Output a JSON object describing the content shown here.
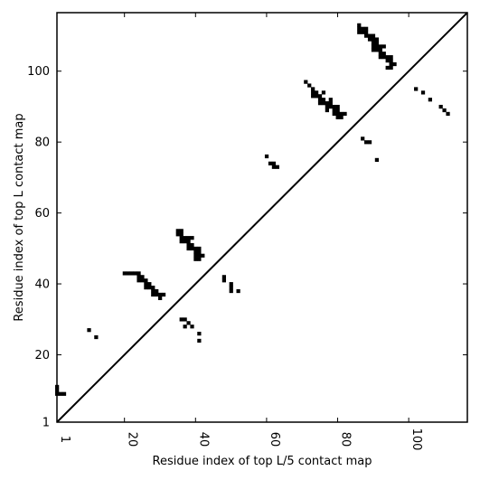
{
  "chart_data": {
    "type": "scatter",
    "xlabel": "Residue index of top L/5 contact map",
    "ylabel": "Residue index of top L contact map",
    "xlim": [
      1,
      116.5
    ],
    "ylim": [
      1,
      116.5
    ],
    "x_ticks": [
      {
        "value": 1,
        "label": "1"
      },
      {
        "value": 20,
        "label": "20"
      },
      {
        "value": 40,
        "label": "40"
      },
      {
        "value": 60,
        "label": "60"
      },
      {
        "value": 80,
        "label": "80"
      },
      {
        "value": 100,
        "label": "100"
      }
    ],
    "y_ticks": [
      {
        "value": 1,
        "label": "1"
      },
      {
        "value": 20,
        "label": "20"
      },
      {
        "value": 40,
        "label": "40"
      },
      {
        "value": 60,
        "label": "60"
      },
      {
        "value": 80,
        "label": "80"
      },
      {
        "value": 100,
        "label": "100"
      }
    ],
    "diagonal": true,
    "grid": false,
    "marker_color": "#000000",
    "points": [
      [
        1,
        9
      ],
      [
        1,
        10
      ],
      [
        1,
        11
      ],
      [
        2,
        9
      ],
      [
        3,
        9
      ],
      [
        10,
        27
      ],
      [
        12,
        25
      ],
      [
        20,
        43
      ],
      [
        21,
        43
      ],
      [
        22,
        43
      ],
      [
        23,
        43
      ],
      [
        24,
        43
      ],
      [
        24,
        42
      ],
      [
        25,
        42
      ],
      [
        24,
        41
      ],
      [
        25,
        41
      ],
      [
        26,
        41
      ],
      [
        26,
        40
      ],
      [
        27,
        40
      ],
      [
        26,
        39
      ],
      [
        27,
        39
      ],
      [
        28,
        39
      ],
      [
        28,
        38
      ],
      [
        29,
        38
      ],
      [
        28,
        37
      ],
      [
        29,
        37
      ],
      [
        30,
        37
      ],
      [
        31,
        37
      ],
      [
        30,
        36
      ],
      [
        35,
        55
      ],
      [
        36,
        55
      ],
      [
        35,
        54
      ],
      [
        36,
        54
      ],
      [
        36,
        53
      ],
      [
        37,
        53
      ],
      [
        38,
        53
      ],
      [
        39,
        53
      ],
      [
        36,
        52
      ],
      [
        37,
        52
      ],
      [
        38,
        52
      ],
      [
        38,
        51
      ],
      [
        39,
        51
      ],
      [
        38,
        50
      ],
      [
        39,
        50
      ],
      [
        40,
        50
      ],
      [
        41,
        50
      ],
      [
        40,
        49
      ],
      [
        41,
        49
      ],
      [
        40,
        48
      ],
      [
        41,
        48
      ],
      [
        42,
        48
      ],
      [
        40,
        47
      ],
      [
        41,
        47
      ],
      [
        36,
        30
      ],
      [
        37,
        30
      ],
      [
        38,
        29
      ],
      [
        37,
        28
      ],
      [
        39,
        28
      ],
      [
        41,
        26
      ],
      [
        41,
        24
      ],
      [
        48,
        42
      ],
      [
        48,
        41
      ],
      [
        50,
        40
      ],
      [
        50,
        39
      ],
      [
        50,
        38
      ],
      [
        52,
        38
      ],
      [
        60,
        76
      ],
      [
        61,
        74
      ],
      [
        62,
        74
      ],
      [
        62,
        73
      ],
      [
        63,
        73
      ],
      [
        71,
        97
      ],
      [
        72,
        96
      ],
      [
        73,
        95
      ],
      [
        73,
        94
      ],
      [
        74,
        94
      ],
      [
        76,
        94
      ],
      [
        73,
        93
      ],
      [
        74,
        93
      ],
      [
        75,
        93
      ],
      [
        75,
        92
      ],
      [
        76,
        92
      ],
      [
        78,
        92
      ],
      [
        75,
        91
      ],
      [
        76,
        91
      ],
      [
        77,
        91
      ],
      [
        78,
        91
      ],
      [
        77,
        90
      ],
      [
        78,
        90
      ],
      [
        79,
        90
      ],
      [
        80,
        90
      ],
      [
        77,
        89
      ],
      [
        79,
        89
      ],
      [
        80,
        89
      ],
      [
        79,
        88
      ],
      [
        80,
        88
      ],
      [
        81,
        88
      ],
      [
        82,
        88
      ],
      [
        80,
        87
      ],
      [
        81,
        87
      ],
      [
        86,
        113
      ],
      [
        86,
        112
      ],
      [
        87,
        112
      ],
      [
        88,
        112
      ],
      [
        86,
        111
      ],
      [
        87,
        111
      ],
      [
        88,
        111
      ],
      [
        88,
        110
      ],
      [
        89,
        110
      ],
      [
        90,
        110
      ],
      [
        89,
        109
      ],
      [
        90,
        109
      ],
      [
        91,
        109
      ],
      [
        90,
        108
      ],
      [
        91,
        108
      ],
      [
        90,
        107
      ],
      [
        91,
        107
      ],
      [
        92,
        107
      ],
      [
        93,
        107
      ],
      [
        90,
        106
      ],
      [
        91,
        106
      ],
      [
        92,
        106
      ],
      [
        92,
        105
      ],
      [
        93,
        105
      ],
      [
        92,
        104
      ],
      [
        93,
        104
      ],
      [
        94,
        104
      ],
      [
        95,
        104
      ],
      [
        94,
        103
      ],
      [
        95,
        103
      ],
      [
        95,
        102
      ],
      [
        96,
        102
      ],
      [
        94,
        101
      ],
      [
        95,
        101
      ],
      [
        87,
        81
      ],
      [
        88,
        80
      ],
      [
        89,
        80
      ],
      [
        91,
        75
      ],
      [
        102,
        95
      ],
      [
        104,
        94
      ],
      [
        106,
        92
      ],
      [
        109,
        90
      ],
      [
        110,
        89
      ],
      [
        111,
        88
      ]
    ]
  }
}
